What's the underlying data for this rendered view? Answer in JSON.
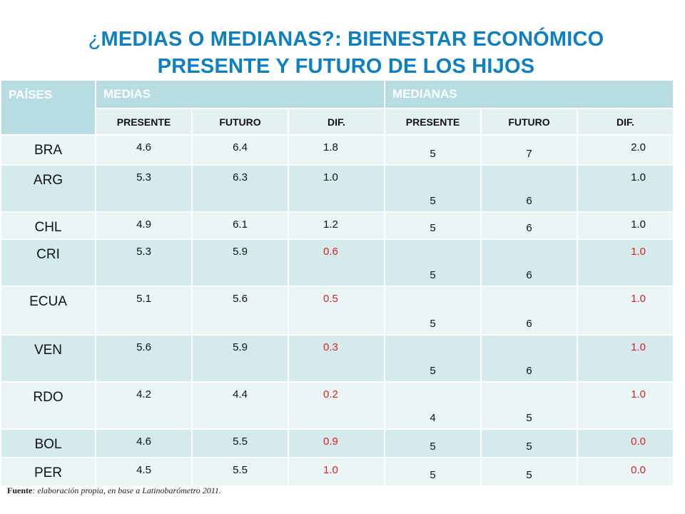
{
  "title": {
    "qmark": "¿",
    "line1": "MEDIAS O MEDIANAS?: BIENESTAR ECONÓMICO",
    "line2": "PRESENTE Y FUTURO DE LOS HIJOS"
  },
  "table": {
    "header": {
      "paises": "PAÍSES",
      "medias": "MEDIAS",
      "medianas": "MEDIANAS"
    },
    "subheader": [
      "PRESENTE",
      "FUTURO",
      "DIF.",
      "PRESENTE",
      "FUTURO",
      "DIF."
    ],
    "rows": [
      {
        "pais": "BRA",
        "m_presente": "4.6",
        "m_futuro": "6.4",
        "m_dif": "1.8",
        "md_presente": "5",
        "md_futuro": "7",
        "md_dif": "2.0"
      },
      {
        "pais": "ARG",
        "m_presente": "5.3",
        "m_futuro": "6.3",
        "m_dif": "1.0",
        "md_presente": "5",
        "md_futuro": "6",
        "md_dif": "1.0"
      },
      {
        "pais": "CHL",
        "m_presente": "4.9",
        "m_futuro": "6.1",
        "m_dif": "1.2",
        "md_presente": "5",
        "md_futuro": "6",
        "md_dif": "1.0"
      },
      {
        "pais": "CRI",
        "m_presente": "5.3",
        "m_futuro": "5.9",
        "m_dif": "0.6",
        "md_presente": "5",
        "md_futuro": "6",
        "md_dif": "1.0"
      },
      {
        "pais": "ECUA",
        "m_presente": "5.1",
        "m_futuro": "5.6",
        "m_dif": "0.5",
        "md_presente": "5",
        "md_futuro": "6",
        "md_dif": "1.0"
      },
      {
        "pais": "VEN",
        "m_presente": "5.6",
        "m_futuro": "5.9",
        "m_dif": "0.3",
        "md_presente": "5",
        "md_futuro": "6",
        "md_dif": "1.0"
      },
      {
        "pais": "RDO",
        "m_presente": "4.2",
        "m_futuro": "4.4",
        "m_dif": "0.2",
        "md_presente": "4",
        "md_futuro": "5",
        "md_dif": "1.0"
      },
      {
        "pais": "BOL",
        "m_presente": "4.6",
        "m_futuro": "5.5",
        "m_dif": "0.9",
        "md_presente": "5",
        "md_futuro": "5",
        "md_dif": "0.0"
      },
      {
        "pais": "PER",
        "m_presente": "4.5",
        "m_futuro": "5.5",
        "m_dif": "1.0",
        "md_presente": "5",
        "md_futuro": "5",
        "md_dif": "0.0"
      }
    ]
  },
  "source": {
    "label": "Fuente",
    "text": ": elaboración propia, en base a  Latinobarómetro 2011."
  },
  "colors": {
    "title": "#0e7fc1",
    "header_bg": "#b7dde3",
    "highlight": "#e02020"
  }
}
